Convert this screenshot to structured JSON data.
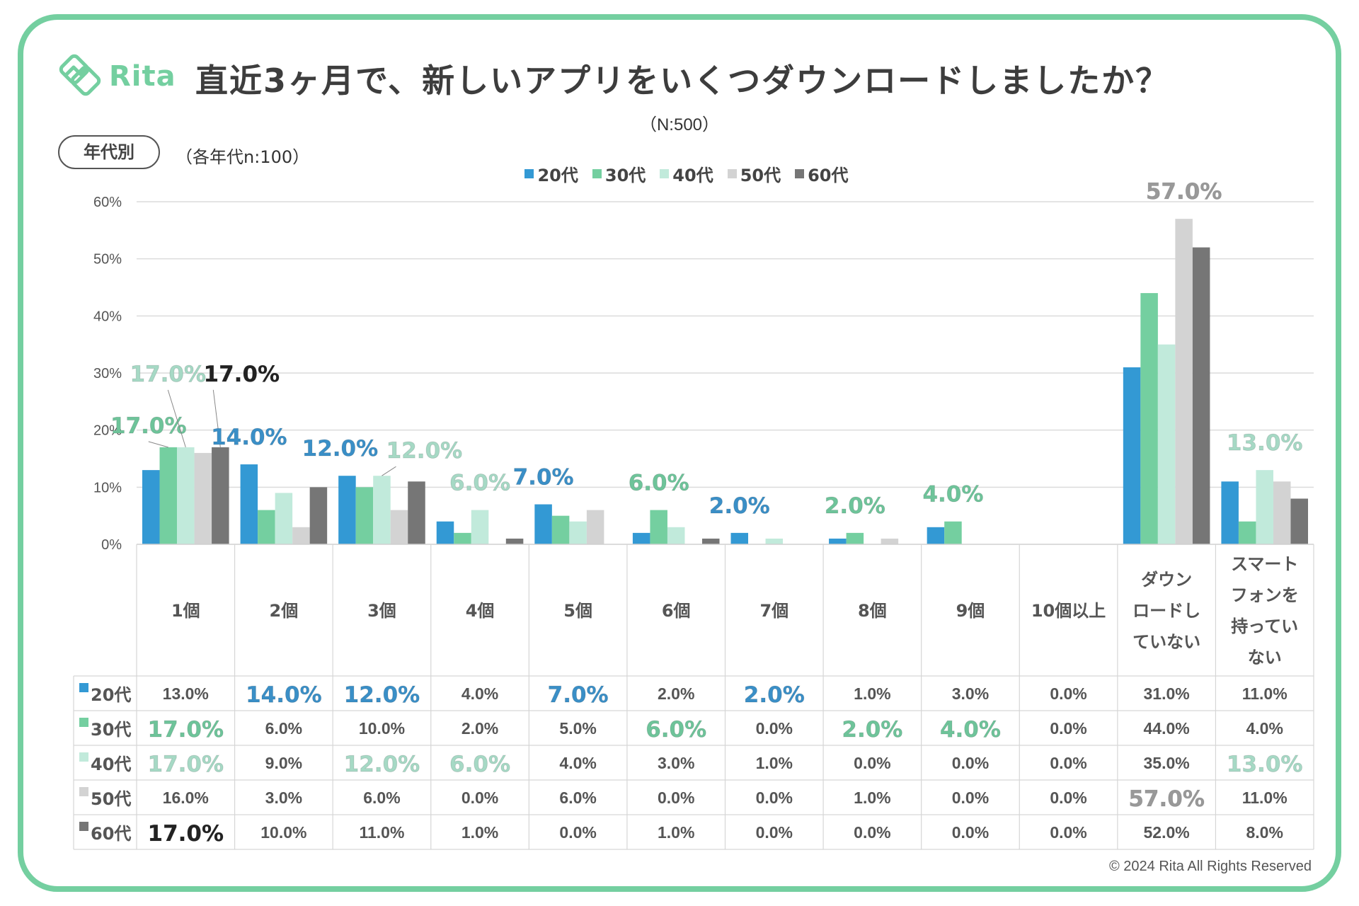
{
  "brand": {
    "name": "Rita",
    "color": "#74cfa0"
  },
  "header": {
    "title": "直近3ヶ月で、新しいアプリをいくつダウンロードしましたか？",
    "sample_total": "（N:500）",
    "segment_badge": "年代別",
    "segment_note": "（各年代n:100）"
  },
  "footer": {
    "copyright": "© 2024 Rita All Rights Reserved"
  },
  "chart_data": {
    "type": "bar",
    "title": "直近3ヶ月で、新しいアプリをいくつダウンロードしましたか？",
    "subtitle": "（N:500）",
    "xlabel": "",
    "ylabel": "",
    "ylim": [
      0,
      60
    ],
    "yticks": [
      0,
      10,
      20,
      30,
      40,
      50,
      60
    ],
    "ytick_labels": [
      "0%",
      "10%",
      "20%",
      "30%",
      "40%",
      "50%",
      "60%"
    ],
    "grid": true,
    "legend_position": "top-center",
    "categories": [
      "1個",
      "2個",
      "3個",
      "4個",
      "5個",
      "6個",
      "7個",
      "8個",
      "9個",
      "10個以上",
      "ダウンロードしていない",
      "スマートフォンを持っていない"
    ],
    "category_lines": [
      [
        "1個"
      ],
      [
        "2個"
      ],
      [
        "3個"
      ],
      [
        "4個"
      ],
      [
        "5個"
      ],
      [
        "6個"
      ],
      [
        "7個"
      ],
      [
        "8個"
      ],
      [
        "9個"
      ],
      [
        "10個以上"
      ],
      [
        "ダウン",
        "ロードし",
        "ていない"
      ],
      [
        "スマート",
        "フォンを",
        "持ってい",
        "ない"
      ]
    ],
    "series": [
      {
        "name": "20代",
        "color": "#3399d4",
        "label_color": "#3a8fc7",
        "values": [
          13,
          14,
          12,
          4,
          7,
          2,
          2,
          1,
          3,
          0,
          31,
          11
        ]
      },
      {
        "name": "30代",
        "color": "#74cfa0",
        "label_color": "#6ec49a",
        "values": [
          17,
          6,
          10,
          2,
          5,
          6,
          0,
          2,
          4,
          0,
          44,
          4
        ]
      },
      {
        "name": "40代",
        "color": "#c1eadb",
        "label_color": "#a6d9c5",
        "values": [
          17,
          9,
          12,
          6,
          4,
          3,
          1,
          0,
          0,
          0,
          35,
          13
        ]
      },
      {
        "name": "50代",
        "color": "#d3d3d3",
        "label_color": "#999999",
        "values": [
          16,
          3,
          6,
          0,
          6,
          0,
          0,
          1,
          0,
          0,
          57,
          11
        ]
      },
      {
        "name": "60代",
        "color": "#767676",
        "label_color": "#222222",
        "values": [
          17,
          10,
          11,
          1,
          0,
          1,
          0,
          0,
          0,
          0,
          52,
          8
        ]
      }
    ],
    "highlights": [
      {
        "series": 1,
        "category": 0,
        "text": "17.0%"
      },
      {
        "series": 2,
        "category": 0,
        "text": "17.0%"
      },
      {
        "series": 4,
        "category": 0,
        "text": "17.0%"
      },
      {
        "series": 0,
        "category": 1,
        "text": "14.0%"
      },
      {
        "series": 0,
        "category": 2,
        "text": "12.0%"
      },
      {
        "series": 2,
        "category": 2,
        "text": "12.0%"
      },
      {
        "series": 2,
        "category": 3,
        "text": "6.0%"
      },
      {
        "series": 0,
        "category": 4,
        "text": "7.0%"
      },
      {
        "series": 1,
        "category": 5,
        "text": "6.0%"
      },
      {
        "series": 0,
        "category": 6,
        "text": "2.0%"
      },
      {
        "series": 1,
        "category": 7,
        "text": "2.0%"
      },
      {
        "series": 1,
        "category": 8,
        "text": "4.0%"
      },
      {
        "series": 3,
        "category": 10,
        "text": "57.0%"
      },
      {
        "series": 2,
        "category": 11,
        "text": "13.0%"
      }
    ],
    "table": {
      "row_labels": [
        "20代",
        "30代",
        "40代",
        "50代",
        "60代"
      ],
      "cells": [
        [
          "13.0%",
          "14.0%",
          "12.0%",
          "4.0%",
          "7.0%",
          "2.0%",
          "2.0%",
          "1.0%",
          "3.0%",
          "0.0%",
          "31.0%",
          "11.0%"
        ],
        [
          "17.0%",
          "6.0%",
          "10.0%",
          "2.0%",
          "5.0%",
          "6.0%",
          "0.0%",
          "2.0%",
          "4.0%",
          "0.0%",
          "44.0%",
          "4.0%"
        ],
        [
          "17.0%",
          "9.0%",
          "12.0%",
          "6.0%",
          "4.0%",
          "3.0%",
          "1.0%",
          "0.0%",
          "0.0%",
          "0.0%",
          "35.0%",
          "13.0%"
        ],
        [
          "16.0%",
          "3.0%",
          "6.0%",
          "0.0%",
          "6.0%",
          "0.0%",
          "0.0%",
          "1.0%",
          "0.0%",
          "0.0%",
          "57.0%",
          "11.0%"
        ],
        [
          "17.0%",
          "10.0%",
          "11.0%",
          "1.0%",
          "0.0%",
          "1.0%",
          "0.0%",
          "0.0%",
          "0.0%",
          "0.0%",
          "52.0%",
          "8.0%"
        ]
      ]
    }
  }
}
